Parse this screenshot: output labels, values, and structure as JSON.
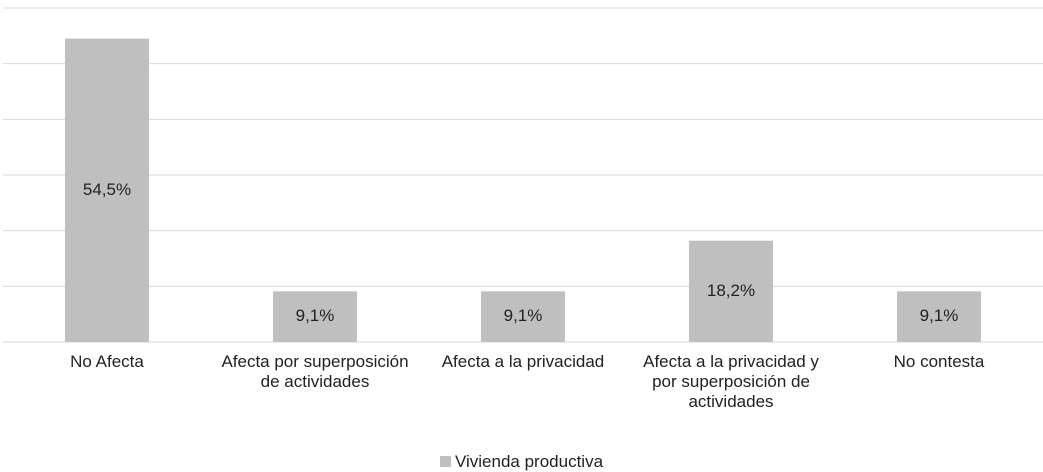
{
  "chart_data": {
    "type": "bar",
    "categories": [
      "No Afecta",
      "Afecta por superposición de actividades",
      "Afecta a la privacidad",
      "Afecta a la privacidad y por superposición de actividades",
      "No contesta"
    ],
    "series": [
      {
        "name": "Vivienda productiva",
        "color": "#bfbfbf",
        "values": [
          54.5,
          9.1,
          9.1,
          18.2,
          9.1
        ],
        "value_labels": [
          "54,5%",
          "9,1%",
          "9,1%",
          "18,2%",
          "9,1%"
        ]
      }
    ],
    "ylim": [
      0,
      60
    ],
    "yticks": [
      0,
      10,
      20,
      30,
      40,
      50,
      60
    ],
    "grid": true,
    "legend": "bottom"
  }
}
